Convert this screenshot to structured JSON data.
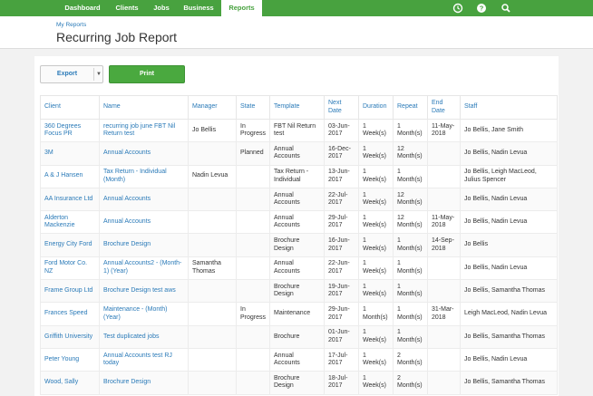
{
  "nav": {
    "items": [
      "Dashboard",
      "Clients",
      "Jobs",
      "Business",
      "Reports"
    ],
    "active": "Reports",
    "icons": [
      "clock-icon",
      "help-icon",
      "search-icon"
    ]
  },
  "header": {
    "breadcrumb": "My Reports",
    "title": "Recurring Job Report"
  },
  "toolbar": {
    "export_label": "Export",
    "print_label": "Print"
  },
  "table": {
    "columns": [
      "Client",
      "Name",
      "Manager",
      "State",
      "Template",
      "Next Date",
      "Duration",
      "Repeat",
      "End Date",
      "Staff"
    ],
    "rows": [
      [
        "360 Degrees Focus PR",
        "recurring job june FBT Nil Return test",
        "Jo Bellis",
        "In Progress",
        "FBT Nil Return test",
        "03-Jun-2017",
        "1 Week(s)",
        "1 Month(s)",
        "11-May-2018",
        "Jo Bellis, Jane Smith"
      ],
      [
        "3M",
        "Annual Accounts",
        "",
        "Planned",
        "Annual Accounts",
        "16-Dec-2017",
        "1 Week(s)",
        "12 Month(s)",
        "",
        "Jo Bellis, Nadin Levua"
      ],
      [
        "A & J Hansen",
        "Tax Return - Individual (Month)",
        "Nadin Levua",
        "",
        "Tax Return - Individual",
        "13-Jun-2017",
        "1 Week(s)",
        "1 Month(s)",
        "",
        "Jo Bellis, Leigh MacLeod, Julius Spencer"
      ],
      [
        "AA Insurance Ltd",
        "Annual Accounts",
        "",
        "",
        "Annual Accounts",
        "22-Jul-2017",
        "1 Week(s)",
        "12 Month(s)",
        "",
        "Jo Bellis, Nadin Levua"
      ],
      [
        "Alderton Mackenzie",
        "Annual Accounts",
        "",
        "",
        "Annual Accounts",
        "29-Jul-2017",
        "1 Week(s)",
        "12 Month(s)",
        "11-May-2018",
        "Jo Bellis, Nadin Levua"
      ],
      [
        "Energy City Ford",
        "Brochure Design",
        "",
        "",
        "Brochure Design",
        "16-Jun-2017",
        "1 Week(s)",
        "1 Month(s)",
        "14-Sep-2018",
        "Jo Bellis"
      ],
      [
        "Ford Motor Co. NZ",
        "Annual Accounts2 - (Month-1) (Year)",
        "Samantha Thomas",
        "",
        "Annual Accounts",
        "22-Jun-2017",
        "1 Week(s)",
        "1 Month(s)",
        "",
        "Jo Bellis, Nadin Levua"
      ],
      [
        "Frame Group Ltd",
        "Brochure Design test aws",
        "",
        "",
        "Brochure Design",
        "19-Jun-2017",
        "1 Week(s)",
        "1 Month(s)",
        "",
        "Jo Bellis, Samantha Thomas"
      ],
      [
        "Frances Speed",
        "Maintenance - (Month) (Year)",
        "",
        "In Progress",
        "Maintenance",
        "29-Jun-2017",
        "1 Month(s)",
        "1 Month(s)",
        "31-Mar-2018",
        "Leigh MacLeod, Nadin Levua"
      ],
      [
        "Griffith University",
        "Test duplicated jobs",
        "",
        "",
        "Brochure",
        "01-Jun-2017",
        "1 Week(s)",
        "1 Month(s)",
        "",
        "Jo Bellis, Samantha Thomas"
      ],
      [
        "Peter Young",
        "Annual Accounts test RJ today",
        "",
        "",
        "Annual Accounts",
        "17-Jul-2017",
        "1 Week(s)",
        "2 Month(s)",
        "",
        "Jo Bellis, Nadin Levua"
      ],
      [
        "Wood, Sally",
        "Brochure Design",
        "",
        "",
        "Brochure Design",
        "18-Jul-2017",
        "1 Week(s)",
        "2 Month(s)",
        "",
        "Jo Bellis, Samantha Thomas"
      ]
    ]
  }
}
